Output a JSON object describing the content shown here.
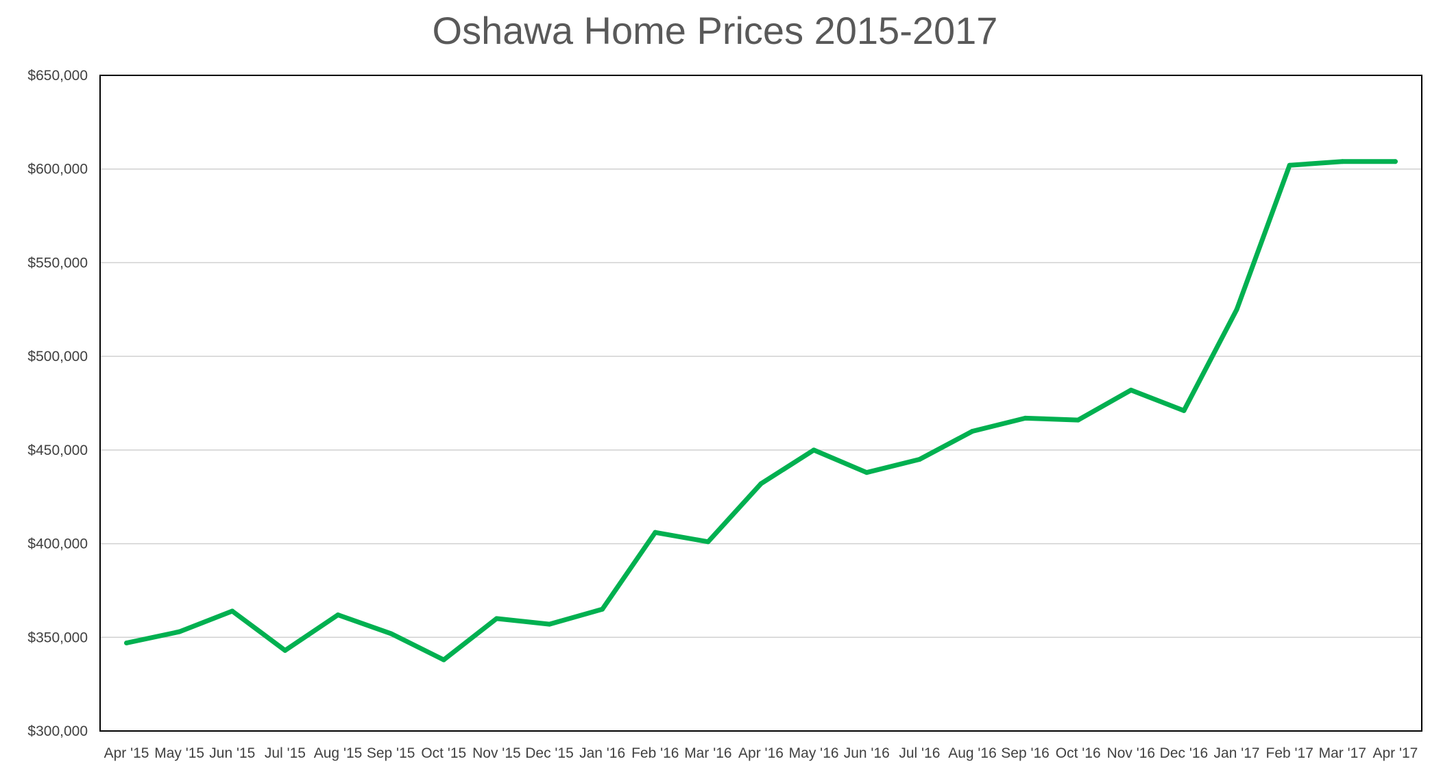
{
  "chart_data": {
    "type": "line",
    "title": "Oshawa Home Prices 2015-2017",
    "xlabel": "",
    "ylabel": "",
    "categories": [
      "Apr '15",
      "May '15",
      "Jun '15",
      "Jul '15",
      "Aug '15",
      "Sep '15",
      "Oct '15",
      "Nov '15",
      "Dec '15",
      "Jan '16",
      "Feb '16",
      "Mar '16",
      "Apr '16",
      "May '16",
      "Jun '16",
      "Jul '16",
      "Aug '16",
      "Sep '16",
      "Oct '16",
      "Nov '16",
      "Dec '16",
      "Jan '17",
      "Feb '17",
      "Mar '17",
      "Apr '17"
    ],
    "series": [
      {
        "color": "#00b050",
        "values": [
          347000,
          353000,
          364000,
          343000,
          362000,
          352000,
          338000,
          360000,
          357000,
          365000,
          406000,
          401000,
          432000,
          450000,
          438000,
          445000,
          460000,
          467000,
          466000,
          482000,
          471000,
          525000,
          602000,
          604000,
          604000
        ]
      }
    ],
    "ylim": [
      300000,
      650000
    ],
    "yticks": [
      300000,
      350000,
      400000,
      450000,
      500000,
      550000,
      600000,
      650000
    ],
    "ytick_labels": [
      "$300,000",
      "$350,000",
      "$400,000",
      "$450,000",
      "$500,000",
      "$550,000",
      "$600,000",
      "$650,000"
    ],
    "grid": true,
    "legend": "none"
  }
}
